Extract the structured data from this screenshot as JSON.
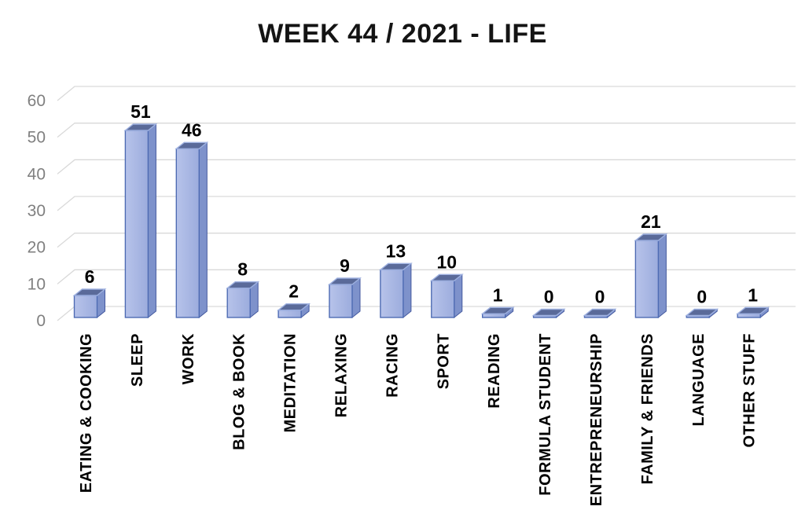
{
  "chart_data": {
    "type": "bar",
    "style": "3d-bar",
    "title": "WEEK 44 / 2021 - LIFE",
    "categories": [
      "EATING & COOKING",
      "SLEEP",
      "WORK",
      "BLOG & BOOK",
      "MEDITATION",
      "RELAXING",
      "RACING",
      "SPORT",
      "READING",
      "FORMULA STUDENT",
      "ENTREPRENEURSHIP",
      "FAMILY & FRIENDS",
      "LANGUAGE",
      "OTHER STUFF"
    ],
    "values": [
      6,
      51,
      46,
      8,
      2,
      9,
      13,
      10,
      1,
      0,
      0,
      21,
      0,
      1
    ],
    "xlabel": "",
    "ylabel": "",
    "ylim": [
      0,
      60
    ],
    "yticks": [
      0,
      10,
      20,
      30,
      40,
      50,
      60
    ],
    "grid": true,
    "legend": false,
    "x_labels_rotation_deg": -90,
    "colors": {
      "background": "#ffffff",
      "bar_front_light": "#b7c3ea",
      "bar_front_dark": "#9cacdd",
      "bar_edge": "#4e6bb3",
      "bar_side": "#7e92cb",
      "bar_side_edge": "#44599f",
      "bar_top": "#5a6a99",
      "bar_top_edge": "#9db0e0",
      "gridline": "#d9d9d9",
      "axis_text": "#808080",
      "label_text": "#000000",
      "title_text": "#141414"
    }
  }
}
